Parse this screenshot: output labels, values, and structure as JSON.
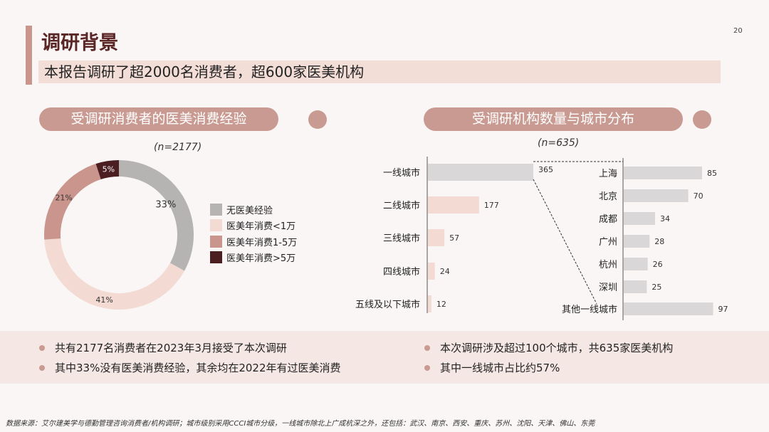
{
  "header": {
    "title": "调研背景",
    "subtitle": "本报告调研了超2000名消费者，超600家医美机构",
    "page_number": "20"
  },
  "colors": {
    "accent": "#c99a91",
    "band": "#f3ddd7",
    "title": "#5a2626"
  },
  "left_section": {
    "heading": "受调研消费者的医美消费经验",
    "sample": "(n=2177)"
  },
  "right_section": {
    "heading": "受调研机构数量与城市分布",
    "sample": "(n=635)"
  },
  "chart_data": [
    {
      "type": "pie",
      "variant": "donut",
      "start": "top",
      "direction": "clockwise",
      "categories": [
        "无医美经验",
        "医美年消费<1万",
        "医美年消费1-5万",
        "医美年消费>5万"
      ],
      "values": [
        33,
        41,
        21,
        5
      ],
      "labels": [
        "33%",
        "41%",
        "21%",
        "5%"
      ],
      "colors": [
        "#b6b3b3",
        "#f3dad3",
        "#c9958c",
        "#4b1e22"
      ],
      "legend": "right"
    },
    {
      "type": "bar",
      "orientation": "horizontal",
      "categories": [
        "一线城市",
        "二线城市",
        "三线城市",
        "四线城市",
        "五线及以下城市"
      ],
      "values": [
        365,
        177,
        57,
        24,
        12
      ],
      "colors": [
        "#d9d7d7",
        "#f3dad3",
        "#f3dad3",
        "#f3dad3",
        "#f3dad3"
      ]
    },
    {
      "type": "bar",
      "orientation": "horizontal",
      "categories": [
        "上海",
        "北京",
        "成都",
        "广州",
        "杭州",
        "深圳",
        "其他一线城市"
      ],
      "values": [
        85,
        70,
        34,
        28,
        26,
        25,
        97
      ],
      "color": "#d9d7d7"
    }
  ],
  "bullets": {
    "left": [
      "共有2177名消费者在2023年3月接受了本次调研",
      "其中33%没有医美消费经验，其余均在2022年有过医美消费"
    ],
    "right": [
      "本次调研涉及超过100个城市，共635家医美机构",
      "其中一线城市占比约57%"
    ]
  },
  "footer": "数据来源：艾尔建美学与德勤管理咨询消费者/机构调研；城市级别采用CCCI城市分级，一线城市除北上广成杭深之外，还包括：武汉、南京、西安、重庆、苏州、沈阳、天津、佛山、东莞"
}
